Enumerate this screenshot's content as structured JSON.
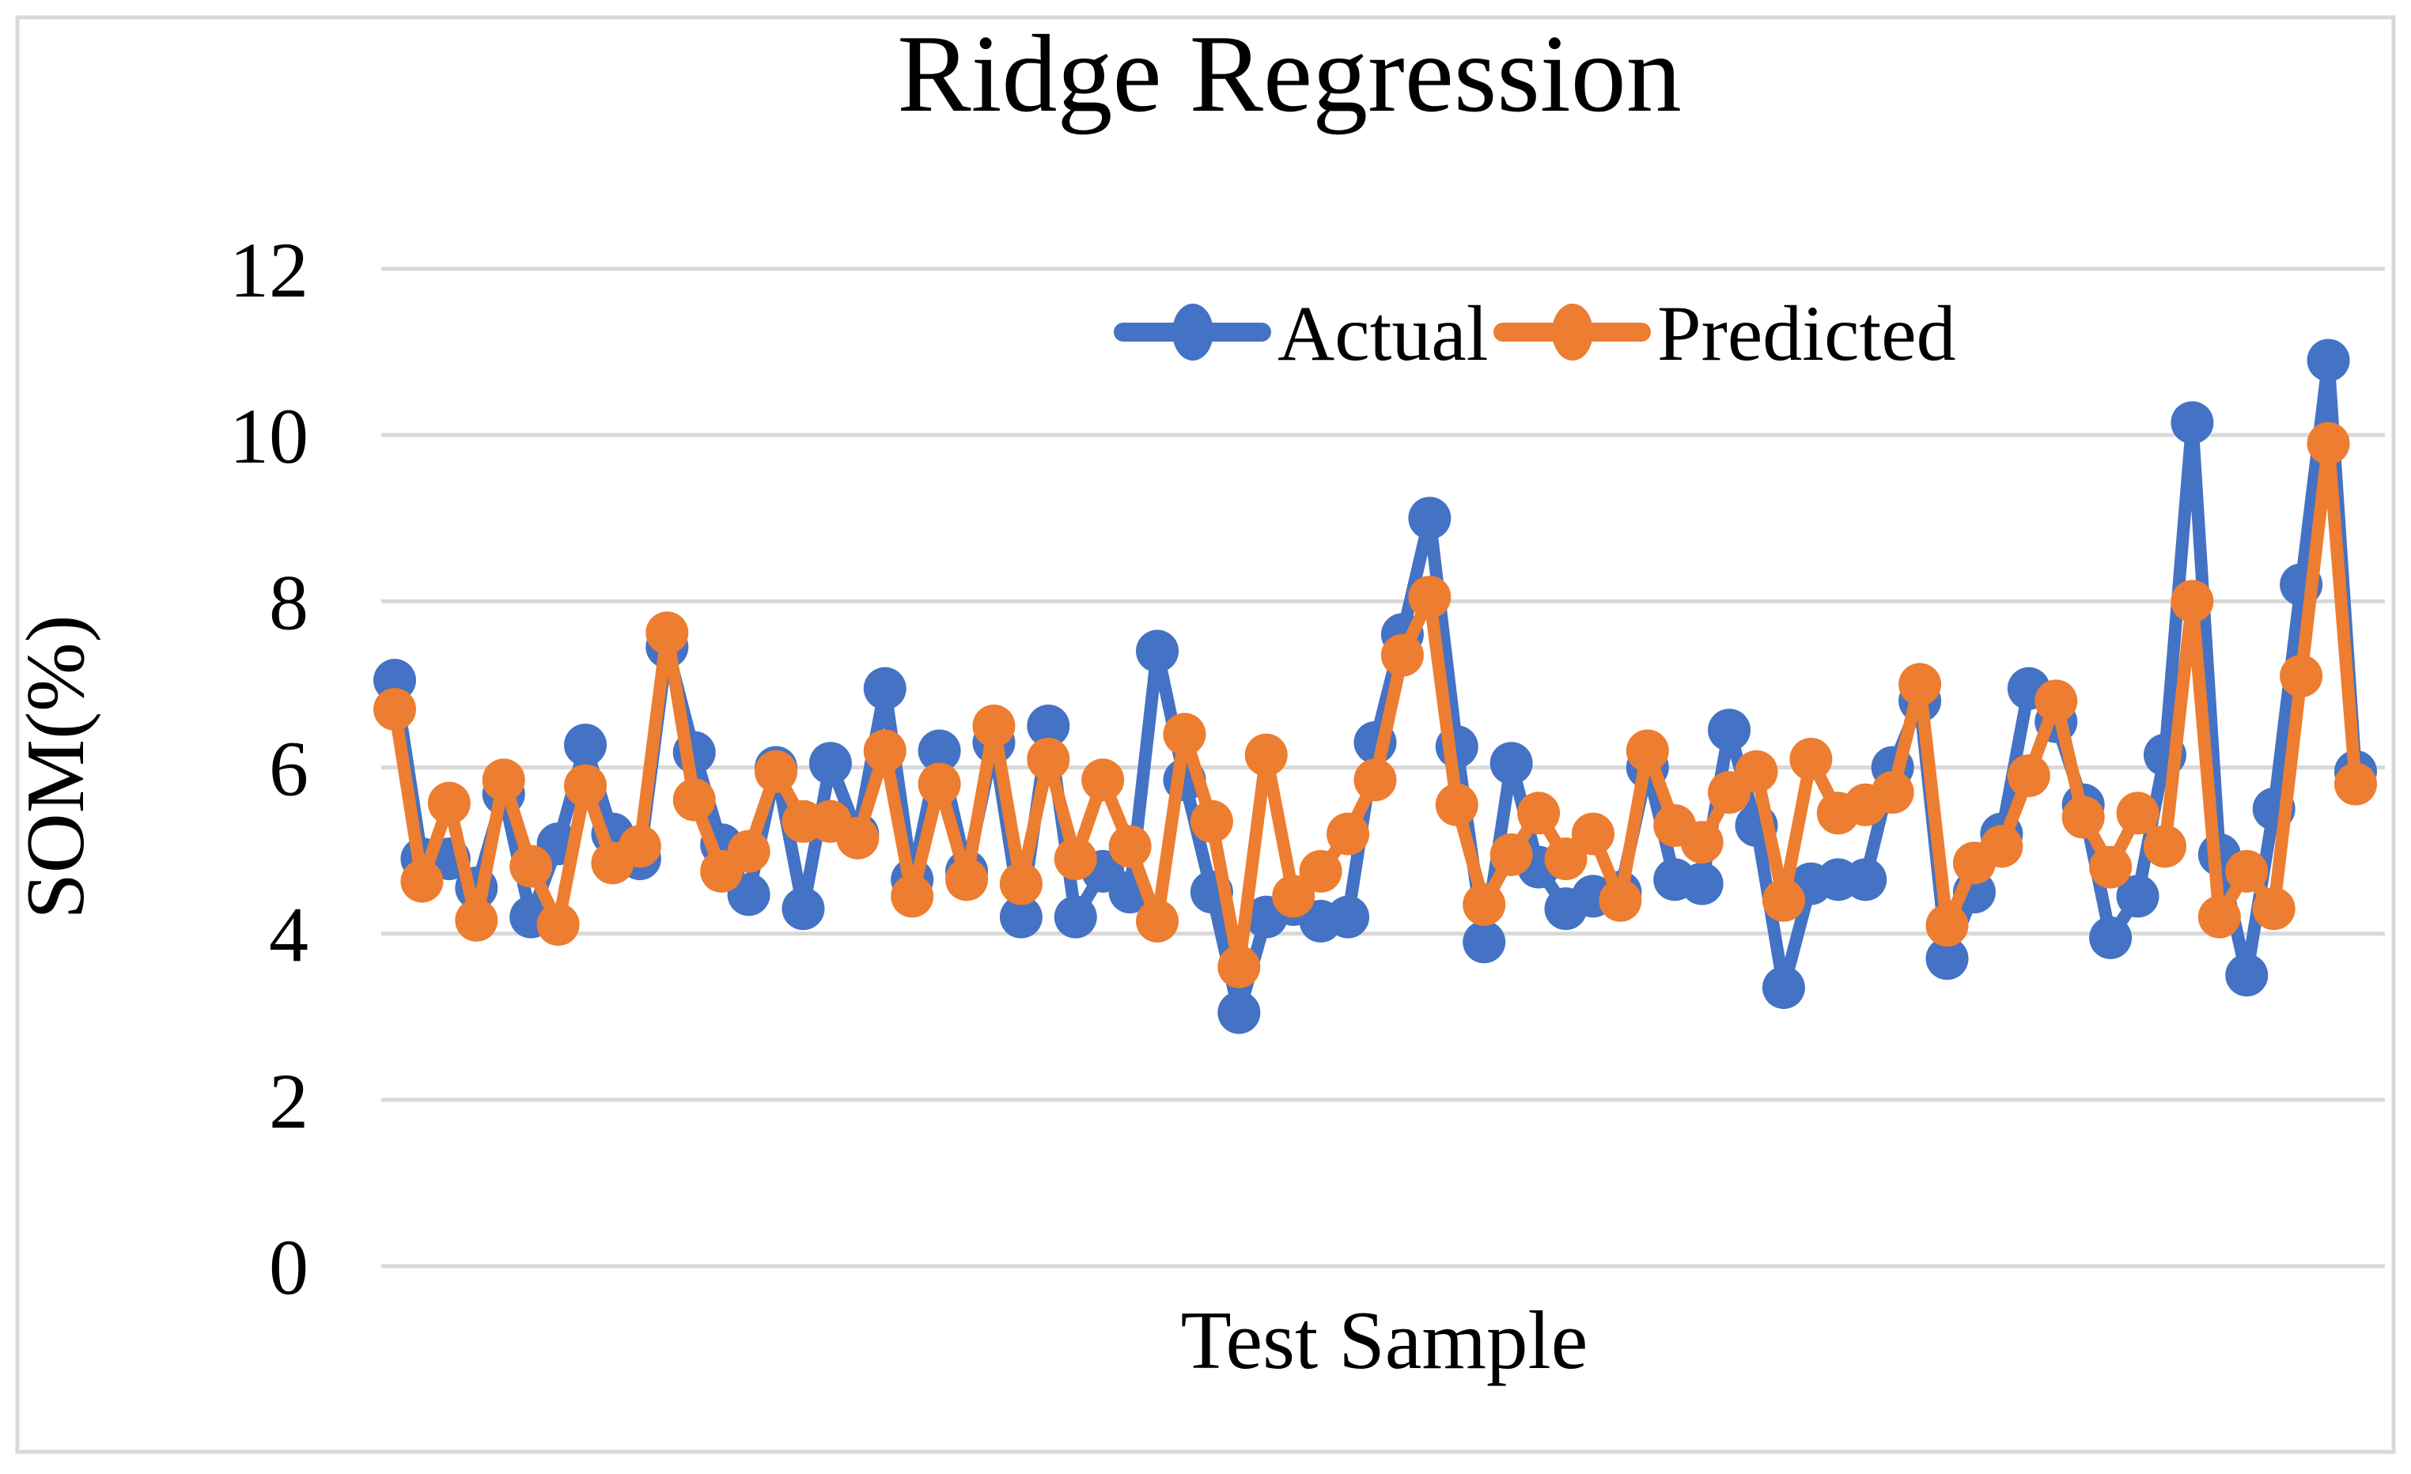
{
  "figure": {
    "background_color": "#FFFFFF",
    "border_color": "#D9D9D9",
    "gridline_color": "#D9D9D9",
    "text_color": "#000000"
  },
  "legend": {
    "items": [
      {
        "label": "Actual",
        "color": "#4472C4",
        "glyph": "line-with-circle-marker"
      },
      {
        "label": "Predicted",
        "color": "#ED7D31",
        "glyph": "line-with-circle-marker"
      }
    ]
  },
  "chart_data": {
    "type": "line",
    "title": "Ridge Regression",
    "xlabel": "Test Sample",
    "ylabel": "SOM(%)",
    "ylim": [
      0,
      12
    ],
    "yticks": [
      0,
      2,
      4,
      6,
      8,
      10,
      12
    ],
    "x_tick_labels_visible": false,
    "grid": true,
    "legend_position": "top-center-inside",
    "marker_style": "filled-circle",
    "n_points": 73,
    "series": [
      {
        "name": "Actual",
        "color": "#4472C4",
        "values": [
          7.05,
          4.9,
          4.9,
          4.55,
          5.68,
          4.2,
          5.08,
          6.27,
          5.2,
          4.9,
          7.45,
          6.18,
          5.07,
          4.47,
          6.0,
          4.3,
          6.05,
          5.2,
          6.95,
          4.65,
          6.2,
          4.75,
          6.3,
          4.2,
          6.5,
          4.2,
          4.75,
          4.5,
          7.4,
          5.85,
          4.5,
          3.05,
          4.2,
          4.35,
          4.15,
          4.2,
          6.3,
          7.6,
          9.0,
          6.25,
          3.9,
          6.05,
          4.8,
          4.3,
          4.45,
          4.5,
          6.0,
          4.65,
          4.6,
          6.45,
          5.3,
          3.35,
          4.6,
          4.65,
          4.65,
          6.0,
          6.8,
          3.7,
          4.5,
          5.2,
          6.95,
          6.55,
          5.55,
          3.95,
          4.45,
          6.15,
          10.15,
          4.95,
          3.5,
          5.5,
          8.2,
          10.9,
          5.95
        ]
      },
      {
        "name": "Predicted",
        "color": "#ED7D31",
        "values": [
          6.7,
          4.63,
          5.57,
          4.16,
          5.85,
          4.81,
          4.11,
          5.78,
          4.85,
          5.05,
          7.62,
          5.61,
          4.75,
          4.99,
          5.95,
          5.35,
          5.35,
          5.15,
          6.2,
          4.45,
          5.8,
          4.65,
          6.5,
          4.6,
          6.1,
          4.9,
          5.85,
          5.05,
          4.15,
          6.4,
          5.35,
          3.6,
          6.15,
          4.45,
          4.75,
          5.2,
          5.85,
          7.35,
          8.05,
          5.55,
          4.35,
          4.95,
          5.45,
          4.9,
          5.2,
          4.4,
          6.2,
          5.3,
          5.1,
          5.7,
          5.95,
          4.4,
          6.1,
          5.45,
          5.55,
          5.7,
          7.0,
          4.1,
          4.85,
          5.05,
          5.9,
          6.8,
          5.4,
          4.8,
          5.45,
          5.05,
          8.0,
          4.2,
          4.75,
          4.3,
          7.1,
          9.9,
          5.8
        ]
      }
    ]
  }
}
